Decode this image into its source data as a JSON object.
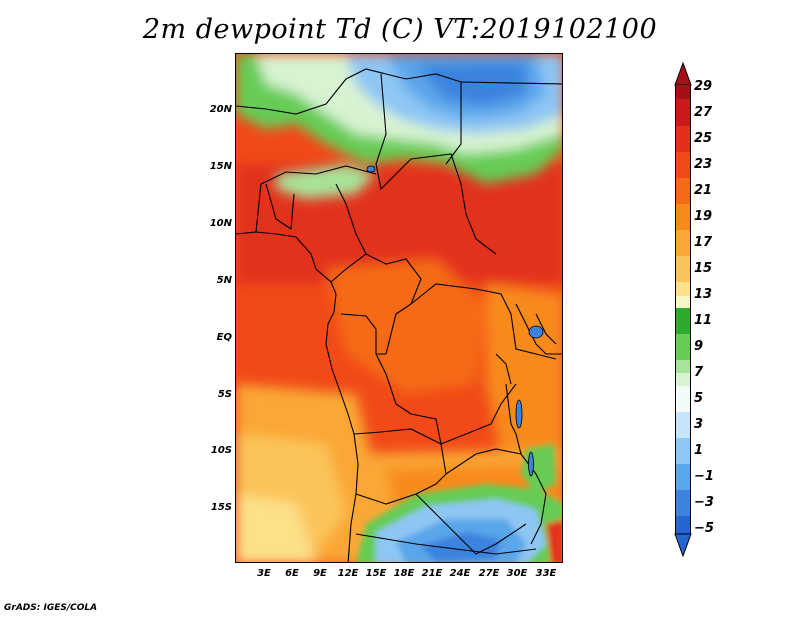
{
  "title": "2m dewpoint Td (C) VT:2019102100",
  "footer": "GrADS: IGES/COLA",
  "map": {
    "variable": "2m dewpoint",
    "units": "C",
    "valid_time": "2019102100",
    "lat_labels": [
      "20N",
      "15N",
      "10N",
      "5N",
      "EQ",
      "5S",
      "10S",
      "15S"
    ],
    "lon_labels": [
      "3E",
      "6E",
      "9E",
      "12E",
      "15E",
      "18E",
      "21E",
      "24E",
      "27E",
      "30E",
      "33E"
    ]
  },
  "colorbar": {
    "labels": [
      "29",
      "27",
      "25",
      "23",
      "21",
      "19",
      "17",
      "15",
      "13",
      "11",
      "9",
      "7",
      "5",
      "3",
      "1",
      "−1",
      "−3",
      "−5"
    ],
    "colors": [
      "#a50f15",
      "#cb181d",
      "#e3301c",
      "#f14a18",
      "#f56a17",
      "#f88a1a",
      "#faa736",
      "#fbc45a",
      "#fde08a",
      "#f9f6c8",
      "#2eaa2e",
      "#66cc55",
      "#a7e39a",
      "#d8f3d2",
      "#f2fbf8",
      "#c6e5fb",
      "#8ec6f4",
      "#5aa6ea",
      "#3b83df",
      "#2566d2"
    ]
  }
}
